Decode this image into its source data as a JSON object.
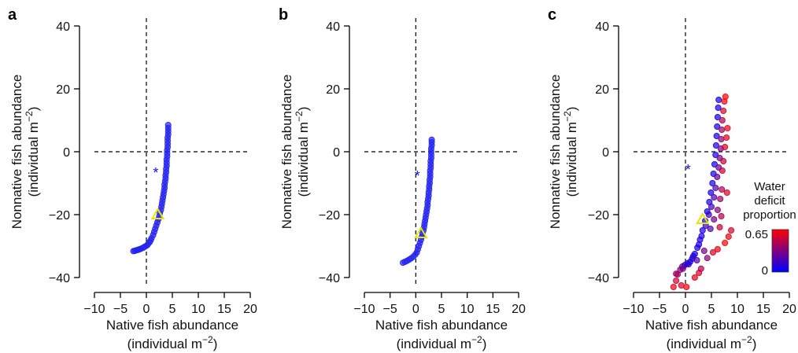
{
  "chart_data": [
    {
      "panel": "a",
      "type": "scatter",
      "xlabel": "Native fish abundance",
      "xlabel_units": "(individual m",
      "ylabel": "Nonnative fish abundance",
      "ylabel_units": "(individual m",
      "unit_exponent": "−2",
      "unit_close": ")",
      "xlim": [
        -10,
        20
      ],
      "ylim": [
        -40,
        40
      ],
      "xticks": [
        "−10",
        "−5",
        "0",
        "5",
        "10",
        "15",
        "20"
      ],
      "yticks": [
        "−40",
        "−20",
        "0",
        "20",
        "40"
      ],
      "reference_lines": {
        "x": 0,
        "y": 0
      },
      "star_marker": {
        "x": 1.8,
        "y": -6
      },
      "triangle_marker": {
        "x": 2.2,
        "y": -20
      },
      "points": [
        [
          -2.5,
          -31.6
        ],
        [
          -2.2,
          -31.5
        ],
        [
          -1.9,
          -31.3
        ],
        [
          -1.6,
          -31.2
        ],
        [
          -1.3,
          -31.0
        ],
        [
          -1.0,
          -30.8
        ],
        [
          -0.6,
          -30.5
        ],
        [
          -0.3,
          -30.2
        ],
        [
          0.1,
          -29.8
        ],
        [
          0.3,
          -29.4
        ],
        [
          0.6,
          -28.8
        ],
        [
          0.8,
          -28.2
        ],
        [
          1.0,
          -27.5
        ],
        [
          1.3,
          -26.5
        ],
        [
          1.5,
          -25.5
        ],
        [
          1.7,
          -24.5
        ],
        [
          1.9,
          -23.5
        ],
        [
          2.1,
          -22.5
        ],
        [
          2.3,
          -21.5
        ],
        [
          2.5,
          -20.5
        ],
        [
          2.6,
          -19.5
        ],
        [
          2.8,
          -18.5
        ],
        [
          2.9,
          -17.5
        ],
        [
          3.0,
          -16.5
        ],
        [
          3.1,
          -15.5
        ],
        [
          3.2,
          -14.5
        ],
        [
          3.3,
          -13.5
        ],
        [
          3.4,
          -12.5
        ],
        [
          3.5,
          -11.5
        ],
        [
          3.5,
          -10.5
        ],
        [
          3.6,
          -9.5
        ],
        [
          3.7,
          -8.5
        ],
        [
          3.7,
          -7.5
        ],
        [
          3.8,
          -6.5
        ],
        [
          3.8,
          -5.5
        ],
        [
          3.9,
          -4.5
        ],
        [
          3.9,
          -3.5
        ],
        [
          3.9,
          -2.5
        ],
        [
          4.0,
          -1.5
        ],
        [
          4.0,
          -0.5
        ],
        [
          4.0,
          0.5
        ],
        [
          4.1,
          1.5
        ],
        [
          4.1,
          2.5
        ],
        [
          4.1,
          3.5
        ],
        [
          4.1,
          4.5
        ],
        [
          4.2,
          5.5
        ],
        [
          4.2,
          6.5
        ],
        [
          4.2,
          7.5
        ],
        [
          4.2,
          8.5
        ]
      ]
    },
    {
      "panel": "b",
      "type": "scatter",
      "xlabel": "Native fish abundance",
      "xlabel_units": "(individual m",
      "ylabel": "Nonnative fish abundance",
      "ylabel_units": "(individual m",
      "unit_exponent": "−2",
      "unit_close": ")",
      "xlim": [
        -10,
        20
      ],
      "ylim": [
        -40,
        40
      ],
      "xticks": [
        "−10",
        "−5",
        "0",
        "5",
        "10",
        "15",
        "20"
      ],
      "yticks": [
        "−40",
        "−20",
        "0",
        "20",
        "40"
      ],
      "reference_lines": {
        "x": 0,
        "y": 0
      },
      "star_marker": {
        "x": 0.3,
        "y": -7
      },
      "triangle_marker": {
        "x": 1.0,
        "y": -26
      },
      "points": [
        [
          -2.5,
          -35.3
        ],
        [
          -2.1,
          -35.0
        ],
        [
          -1.7,
          -34.7
        ],
        [
          -1.3,
          -34.3
        ],
        [
          -0.9,
          -33.9
        ],
        [
          -0.5,
          -33.4
        ],
        [
          -0.1,
          -32.7
        ],
        [
          0.2,
          -32.0
        ],
        [
          0.4,
          -31.0
        ],
        [
          0.6,
          -30.0
        ],
        [
          0.8,
          -29.0
        ],
        [
          1.0,
          -28.0
        ],
        [
          1.2,
          -27.0
        ],
        [
          1.3,
          -26.0
        ],
        [
          1.5,
          -25.0
        ],
        [
          1.6,
          -24.0
        ],
        [
          1.7,
          -23.0
        ],
        [
          1.8,
          -22.0
        ],
        [
          1.9,
          -21.0
        ],
        [
          2.0,
          -20.0
        ],
        [
          2.1,
          -19.0
        ],
        [
          2.2,
          -18.0
        ],
        [
          2.3,
          -17.0
        ],
        [
          2.3,
          -16.0
        ],
        [
          2.4,
          -15.0
        ],
        [
          2.5,
          -14.0
        ],
        [
          2.5,
          -13.0
        ],
        [
          2.6,
          -12.0
        ],
        [
          2.6,
          -11.0
        ],
        [
          2.7,
          -10.0
        ],
        [
          2.7,
          -9.0
        ],
        [
          2.8,
          -8.0
        ],
        [
          2.8,
          -7.0
        ],
        [
          2.8,
          -6.0
        ],
        [
          2.9,
          -5.0
        ],
        [
          2.9,
          -4.0
        ],
        [
          2.9,
          -3.0
        ],
        [
          3.0,
          -2.0
        ],
        [
          3.0,
          -1.0
        ],
        [
          3.0,
          0.0
        ],
        [
          3.0,
          1.0
        ],
        [
          3.1,
          2.0
        ],
        [
          3.1,
          3.0
        ],
        [
          3.1,
          3.8
        ]
      ]
    },
    {
      "panel": "c",
      "type": "scatter",
      "xlabel": "Native fish abundance",
      "xlabel_units": "(individual m",
      "ylabel": "Nonnative fish abundance",
      "ylabel_units": "(individual m",
      "unit_exponent": "−2",
      "unit_close": ")",
      "xlim": [
        -10,
        20
      ],
      "ylim": [
        -40,
        40
      ],
      "xticks": [
        "−10",
        "−5",
        "0",
        "5",
        "10",
        "15",
        "20"
      ],
      "yticks": [
        "−40",
        "−20",
        "0",
        "20",
        "40"
      ],
      "reference_lines": {
        "x": 0,
        "y": 0
      },
      "star_marker": {
        "x": 0.5,
        "y": -5
      },
      "triangle_marker": {
        "x": 3.3,
        "y": -21.5
      },
      "colorbar": {
        "title": [
          "Water",
          "deficit",
          "proportion"
        ],
        "max_label": "0.65",
        "min_label": "0",
        "colors": [
          "#0000ff",
          "#ff0000"
        ]
      },
      "points": [
        [
          -2.3,
          -43
        ],
        [
          -1.8,
          -41
        ],
        [
          -1.5,
          -39
        ],
        [
          -1.0,
          -37.5
        ],
        [
          -0.6,
          -36.5
        ],
        [
          -0.1,
          -36.0
        ],
        [
          0.4,
          -35.5
        ],
        [
          0.9,
          -35.0
        ],
        [
          1.3,
          -34.0
        ],
        [
          1.8,
          -32.5
        ],
        [
          2.3,
          -30.5
        ],
        [
          2.8,
          -28.0
        ],
        [
          3.3,
          -25.0
        ],
        [
          3.8,
          -22.0
        ],
        [
          4.2,
          -19.0
        ],
        [
          4.6,
          -16.0
        ],
        [
          4.9,
          -13.0
        ],
        [
          5.2,
          -10.0
        ],
        [
          5.4,
          -7.0
        ],
        [
          5.6,
          -4.0
        ],
        [
          5.8,
          -1.0
        ],
        [
          5.9,
          2.0
        ],
        [
          6.0,
          5.0
        ],
        [
          6.1,
          8.0
        ],
        [
          6.2,
          11.0
        ],
        [
          6.3,
          14.0
        ],
        [
          6.4,
          16.5
        ],
        [
          -1.8,
          -38.8
        ],
        [
          -0.5,
          -37.2
        ],
        [
          0.6,
          -35.8
        ],
        [
          1.5,
          -33.2
        ],
        [
          2.6,
          -29.5
        ],
        [
          3.1,
          -26.8
        ],
        [
          3.9,
          -23.5
        ],
        [
          4.5,
          -20.0
        ],
        [
          5.0,
          -17.5
        ],
        [
          5.5,
          -14.5
        ],
        [
          5.8,
          -11.5
        ],
        [
          6.1,
          -8.0
        ],
        [
          6.4,
          -5.0
        ],
        [
          6.6,
          -2.0
        ],
        [
          6.8,
          1.0
        ],
        [
          6.9,
          4.0
        ],
        [
          7.0,
          7.0
        ],
        [
          7.1,
          10.0
        ],
        [
          7.3,
          13.0
        ],
        [
          7.5,
          16.0
        ],
        [
          7.7,
          17.5
        ],
        [
          1.8,
          -40.0
        ],
        [
          2.6,
          -38.5
        ],
        [
          3.0,
          -37.2
        ],
        [
          4.2,
          -33.8
        ],
        [
          5.3,
          -32.0
        ],
        [
          6.2,
          -31.0
        ],
        [
          7.6,
          -29.0
        ],
        [
          8.3,
          -27.0
        ],
        [
          8.8,
          -25.0
        ],
        [
          4.8,
          -24.5
        ],
        [
          5.5,
          -21.5
        ],
        [
          6.2,
          -18.5
        ],
        [
          6.7,
          -15.0
        ],
        [
          7.0,
          -12.0
        ],
        [
          7.1,
          -6.0
        ],
        [
          7.3,
          -3.0
        ],
        [
          7.6,
          1.5
        ],
        [
          7.9,
          4.5
        ],
        [
          8.1,
          7.5
        ],
        [
          -0.8,
          -42.5
        ],
        [
          0.2,
          -44.5
        ],
        [
          2.2,
          -34.5
        ],
        [
          3.6,
          -31.5
        ],
        [
          6.6,
          -24.0
        ],
        [
          6.9,
          -20.5
        ],
        [
          8.0,
          -13.0
        ]
      ],
      "water_deficit": [
        0.6,
        0.52,
        0.45,
        0.35,
        0.28,
        0.1,
        0.05,
        0.05,
        0.05,
        0.05,
        0.05,
        0.05,
        0.05,
        0.05,
        0.05,
        0.05,
        0.05,
        0.05,
        0.05,
        0.05,
        0.05,
        0.05,
        0.05,
        0.05,
        0.05,
        0.05,
        0.05,
        0.4,
        0.3,
        0.15,
        0.1,
        0.1,
        0.1,
        0.12,
        0.15,
        0.18,
        0.2,
        0.22,
        0.25,
        0.28,
        0.3,
        0.32,
        0.35,
        0.4,
        0.45,
        0.55,
        0.62,
        0.65,
        0.58,
        0.55,
        0.45,
        0.35,
        0.55,
        0.6,
        0.65,
        0.6,
        0.55,
        0.2,
        0.3,
        0.35,
        0.4,
        0.45,
        0.5,
        0.5,
        0.55,
        0.58,
        0.6,
        0.55,
        0.62,
        0.2,
        0.3,
        0.5,
        0.45,
        0.55
      ]
    }
  ]
}
